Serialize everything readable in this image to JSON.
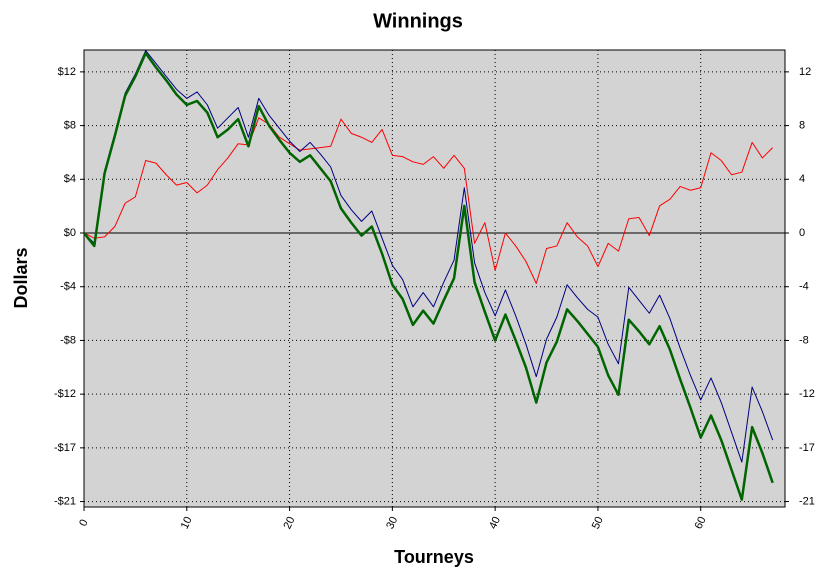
{
  "chart_data": {
    "type": "line",
    "title": "Winnings",
    "xlabel": "Tourneys",
    "ylabel": "Dollars",
    "x": [
      0,
      1,
      2,
      3,
      4,
      5,
      6,
      7,
      8,
      9,
      10,
      11,
      12,
      13,
      14,
      15,
      16,
      17,
      18,
      19,
      20,
      21,
      22,
      23,
      24,
      25,
      26,
      27,
      28,
      29,
      30,
      31,
      32,
      33,
      34,
      35,
      36,
      37,
      38,
      39,
      40,
      41,
      42,
      43,
      44,
      45,
      46,
      47,
      48,
      49,
      50,
      51,
      52,
      53,
      54,
      55,
      56,
      57,
      58,
      59,
      60,
      61,
      62,
      63,
      64,
      65,
      66,
      67
    ],
    "series": [
      {
        "color": "#ff0000",
        "width": 1,
        "values": [
          0,
          -0.4,
          -0.3,
          0.5,
          2.3,
          2.8,
          5.6,
          5.4,
          4.5,
          3.7,
          3.9,
          3.1,
          3.7,
          4.9,
          5.8,
          6.9,
          6.8,
          8.9,
          8.4,
          7.4,
          6.9,
          6.4,
          6.5,
          6.6,
          6.7,
          8.8,
          7.7,
          7.4,
          7.0,
          8.0,
          6.0,
          5.9,
          5.5,
          5.3,
          5.9,
          5.0,
          6.0,
          5.0,
          -0.8,
          0.8,
          -2.9,
          0.0,
          -1.0,
          -2.2,
          -3.9,
          -1.2,
          -1.0,
          0.8,
          -0.3,
          -1.0,
          -2.6,
          -0.8,
          -1.4,
          1.1,
          1.2,
          -0.2,
          2.1,
          2.6,
          3.6,
          3.3,
          3.5,
          6.2,
          5.6,
          4.5,
          4.7,
          7.0,
          5.8,
          6.6
        ]
      },
      {
        "color": "#000080",
        "width": 1,
        "values": [
          0,
          -0.8,
          4.8,
          7.7,
          10.8,
          12.3,
          14.1,
          13.1,
          12.1,
          11.1,
          10.4,
          10.9,
          9.9,
          8.1,
          8.9,
          9.7,
          7.4,
          10.4,
          9.1,
          8.1,
          7.1,
          6.3,
          7.0,
          6.1,
          5.1,
          2.9,
          1.8,
          0.9,
          1.7,
          -0.4,
          -2.5,
          -3.6,
          -5.7,
          -4.6,
          -5.7,
          -3.8,
          -2.1,
          3.5,
          -2.3,
          -4.6,
          -6.4,
          -4.4,
          -6.4,
          -8.6,
          -11.1,
          -8.2,
          -6.5,
          -4.0,
          -5.0,
          -5.9,
          -6.5,
          -8.6,
          -10.1,
          -4.2,
          -5.2,
          -6.2,
          -4.8,
          -6.6,
          -8.9,
          -11.0,
          -12.9,
          -11.2,
          -13.1,
          -15.4,
          -17.7,
          -11.9,
          -13.8,
          -16.0
        ]
      },
      {
        "color": "#006400",
        "width": 2.5,
        "values": [
          0,
          -1,
          4.6,
          7.5,
          10.6,
          12.1,
          13.9,
          12.8,
          11.8,
          10.7,
          9.9,
          10.2,
          9.3,
          7.4,
          8.0,
          8.8,
          6.7,
          9.8,
          8.3,
          7.2,
          6.2,
          5.5,
          6.0,
          5.0,
          4.0,
          1.9,
          0.8,
          -0.2,
          0.5,
          -1.6,
          -4.0,
          -5.1,
          -7.1,
          -6.0,
          -7.0,
          -5.2,
          -3.5,
          2.1,
          -3.8,
          -6.1,
          -8.3,
          -6.3,
          -8.3,
          -10.4,
          -13.1,
          -10.0,
          -8.4,
          -5.9,
          -6.8,
          -7.8,
          -8.8,
          -11.0,
          -12.5,
          -6.7,
          -7.6,
          -8.6,
          -7.2,
          -9.0,
          -11.3,
          -13.5,
          -15.8,
          -14.1,
          -16.0,
          -18.3,
          -20.6,
          -15.0,
          -17.0,
          -19.3
        ]
      }
    ],
    "xlim": [
      0,
      68.2
    ],
    "xticks": [
      0,
      10,
      20,
      30,
      40,
      50,
      60
    ],
    "ylim": [
      -21.17,
      14.14
    ],
    "yticks": [
      {
        "value": 12.45,
        "label": "$12"
      },
      {
        "value": 8.3,
        "label": "$8"
      },
      {
        "value": 4.15,
        "label": "$4"
      },
      {
        "value": 0,
        "label": "$0"
      },
      {
        "value": -4.15,
        "label": "-$4"
      },
      {
        "value": -8.3,
        "label": "-$8"
      },
      {
        "value": -12.45,
        "label": "-$12"
      },
      {
        "value": -16.6,
        "label": "-$17"
      },
      {
        "value": -20.75,
        "label": "-$21"
      }
    ],
    "y2lim": [
      -21.17,
      14.14
    ],
    "y2ticks": [
      {
        "value": 12.45,
        "label": "12"
      },
      {
        "value": 8.3,
        "label": "8"
      },
      {
        "value": 4.15,
        "label": "4"
      },
      0,
      {
        "value": -4.15,
        "label": "-4"
      },
      {
        "value": -8.3,
        "label": "-8"
      },
      {
        "value": -12.45,
        "label": "-12"
      },
      {
        "value": -16.6,
        "label": "-17"
      },
      {
        "value": -20.75,
        "label": "-21"
      }
    ],
    "grid": true,
    "zero_line": true,
    "plot_background": "#d3d3d3"
  }
}
